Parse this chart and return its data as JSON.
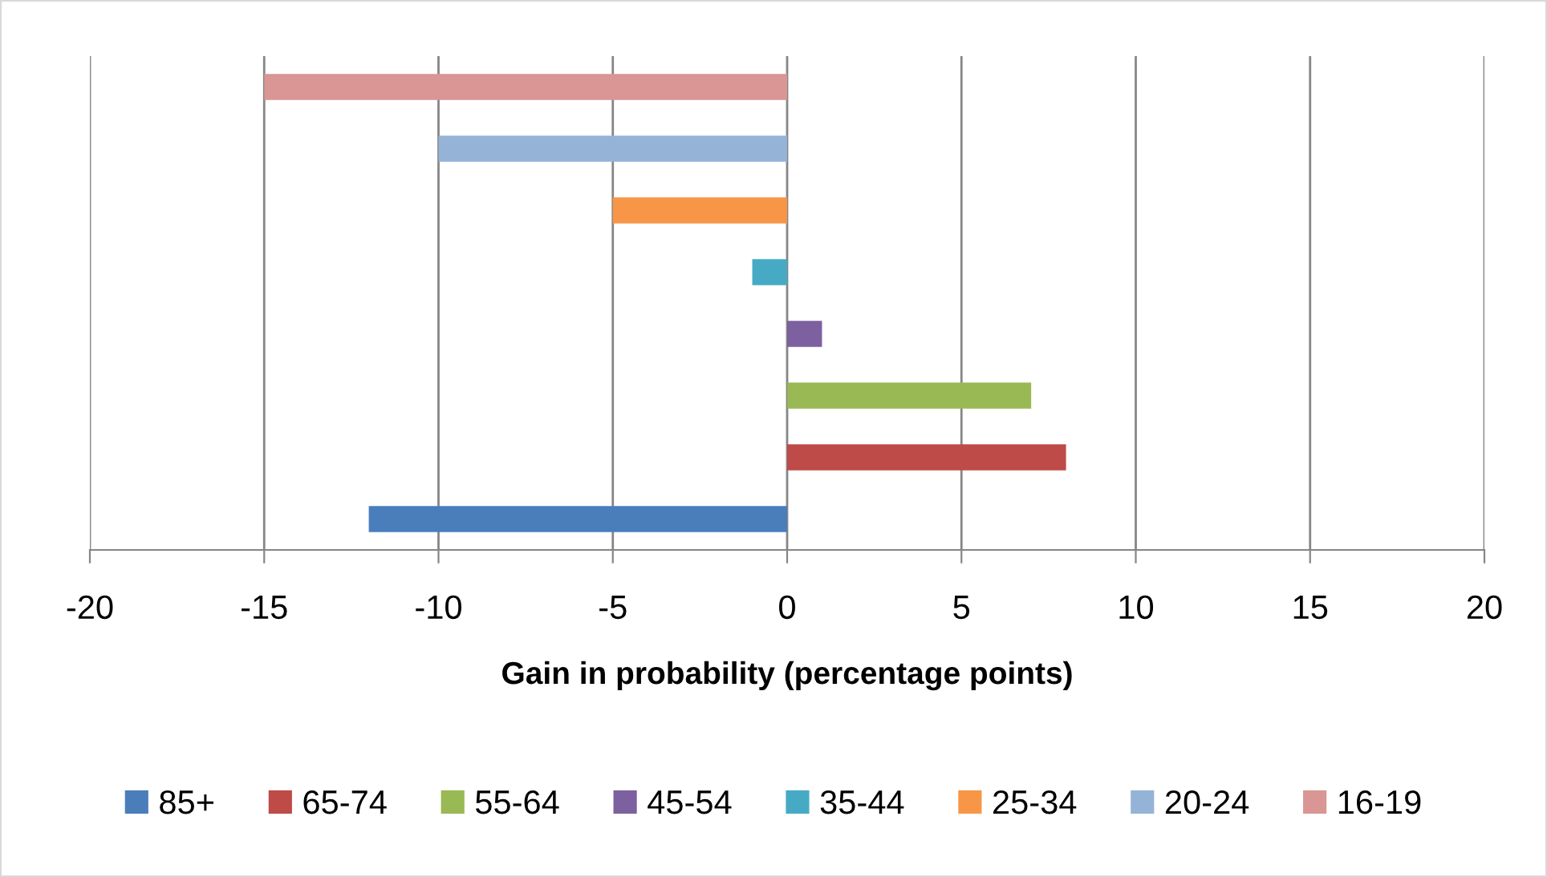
{
  "chart_data": {
    "type": "bar",
    "orientation": "horizontal",
    "categories": [
      null
    ],
    "series": [
      {
        "name": "85+",
        "color": "#4a7ebb",
        "values": [
          -12
        ]
      },
      {
        "name": "65-74",
        "color": "#be4b48",
        "values": [
          8
        ]
      },
      {
        "name": "55-64",
        "color": "#98b954",
        "values": [
          7
        ]
      },
      {
        "name": "45-54",
        "color": "#7d60a0",
        "values": [
          1
        ]
      },
      {
        "name": "35-44",
        "color": "#46aac5",
        "values": [
          -1
        ]
      },
      {
        "name": "25-34",
        "color": "#f79646",
        "values": [
          -5
        ]
      },
      {
        "name": "20-24",
        "color": "#95b3d7",
        "values": [
          -10
        ]
      },
      {
        "name": "16-19",
        "color": "#d99694",
        "values": [
          -15
        ]
      }
    ],
    "xlabel": "Gain in probability (percentage points)",
    "xlim": [
      -20,
      20
    ],
    "xticks": [
      -20,
      -15,
      -10,
      -5,
      0,
      5,
      10,
      15,
      20
    ],
    "grid": "x",
    "legend": "bottom"
  }
}
